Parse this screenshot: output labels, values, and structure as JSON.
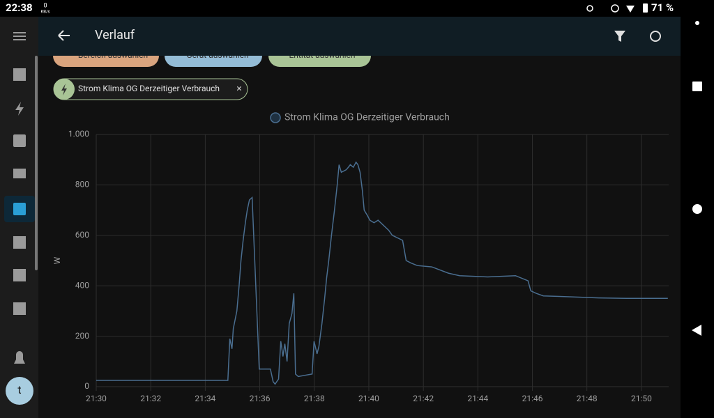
{
  "status_bar": {
    "time": "22:38",
    "net_value": "0",
    "net_unit": "KB/s",
    "battery": "71 %"
  },
  "header": {
    "title": "Verlauf"
  },
  "chips": [
    "Bereich auswählen",
    "Gerät auswählen",
    "Entität auswählen"
  ],
  "selected_entity": "Strom Klima OG Derzeitiger Verbrauch",
  "user_initial": "t",
  "chart_data": {
    "type": "line",
    "series": [
      {
        "name": "Strom Klima OG Derzeitiger Verbrauch",
        "color": "#4a6e90",
        "x": [
          1290,
          1294.83,
          1294.9,
          1294.98,
          1295.03,
          1295.16,
          1295.24,
          1295.31,
          1295.39,
          1295.47,
          1295.54,
          1295.62,
          1295.72,
          1295.98,
          1296.39,
          1296.49,
          1296.56,
          1296.69,
          1296.77,
          1296.85,
          1296.92,
          1297,
          1297.08,
          1297.18,
          1297.25,
          1297.31,
          1297.41,
          1297.92,
          1297.99,
          1298.1,
          1298.17,
          1298.28,
          1298.38,
          1298.45,
          1298.53,
          1298.63,
          1298.74,
          1298.84,
          1298.91,
          1298.99,
          1299.17,
          1299.25,
          1299.32,
          1299.43,
          1299.53,
          1299.6,
          1299.68,
          1299.76,
          1299.83,
          1299.94,
          1300.04,
          1300.19,
          1300.34,
          1300.73,
          1300.86,
          1301.24,
          1301.37,
          1301.55,
          1301.78,
          1302.31,
          1302.92,
          1303.33,
          1304.36,
          1305.38,
          1305.84,
          1305.94,
          1306.14,
          1306.4,
          1306.91,
          1307.68,
          1308.44,
          1309.46,
          1310.97
        ],
        "values": [
          25,
          25,
          190,
          150,
          230,
          300,
          400,
          500,
          580,
          650,
          700,
          740,
          750,
          70,
          70,
          20,
          10,
          30,
          180,
          120,
          170,
          100,
          250,
          290,
          370,
          50,
          40,
          50,
          180,
          130,
          160,
          250,
          350,
          430,
          500,
          600,
          700,
          800,
          880,
          850,
          860,
          870,
          880,
          870,
          890,
          880,
          850,
          780,
          700,
          680,
          660,
          650,
          660,
          620,
          600,
          580,
          500,
          490,
          480,
          475,
          450,
          440,
          435,
          440,
          420,
          380,
          370,
          360,
          358,
          355,
          352,
          350,
          350
        ]
      }
    ],
    "y_label": "W",
    "xlim": [
      1290,
      1311
    ],
    "xticks": [
      {
        "value": 1290,
        "label": "21:30"
      },
      {
        "value": 1292,
        "label": "21:32"
      },
      {
        "value": 1294,
        "label": "21:34"
      },
      {
        "value": 1296,
        "label": "21:36"
      },
      {
        "value": 1298,
        "label": "21:38"
      },
      {
        "value": 1300,
        "label": "21:40"
      },
      {
        "value": 1302,
        "label": "21:42"
      },
      {
        "value": 1304,
        "label": "21:44"
      },
      {
        "value": 1306,
        "label": "21:46"
      },
      {
        "value": 1308,
        "label": "21:48"
      },
      {
        "value": 1310,
        "label": "21:50"
      }
    ],
    "ylim": [
      0,
      1000
    ],
    "yticks": [
      0,
      200,
      400,
      600,
      800,
      {
        "value": 1000,
        "label": "1.000"
      }
    ],
    "grid": true
  }
}
